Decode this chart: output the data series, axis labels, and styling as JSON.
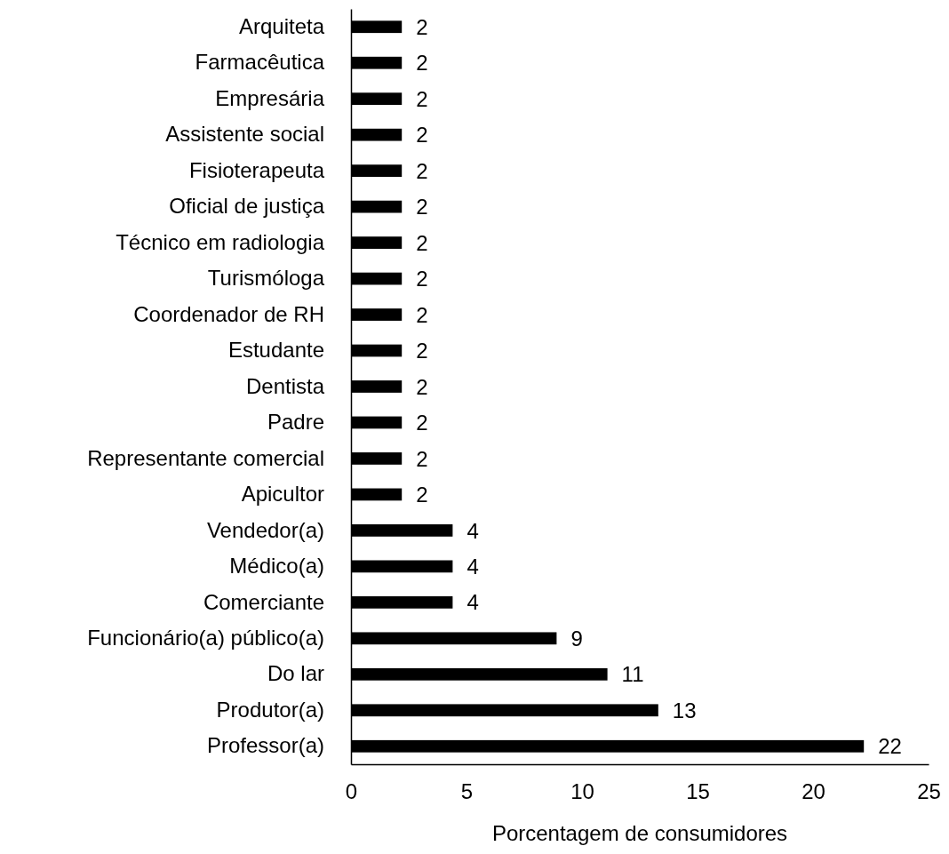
{
  "chart_data": {
    "type": "bar",
    "orientation": "horizontal",
    "xlabel": "Porcentagem de consumidores",
    "categories": [
      "Arquiteta",
      "Farmacêutica",
      "Empresária",
      "Assistente social",
      "Fisioterapeuta",
      "Oficial de justiça",
      "Técnico em radiologia",
      "Turismóloga",
      "Coordenador de RH",
      "Estudante",
      "Dentista",
      "Padre",
      "Representante comercial",
      "Apicultor",
      "Vendedor(a)",
      "Médico(a)",
      "Comerciante",
      "Funcionário(a) público(a)",
      "Do lar",
      "Produtor(a)",
      "Professor(a)"
    ],
    "values": [
      2.2,
      2.2,
      2.2,
      2.2,
      2.2,
      2.2,
      2.2,
      2.2,
      2.2,
      2.2,
      2.2,
      2.2,
      2.2,
      2.2,
      4.4,
      4.4,
      4.4,
      8.9,
      11.1,
      13.3,
      22.2
    ],
    "value_labels": [
      "2",
      "2",
      "2",
      "2",
      "2",
      "2",
      "2",
      "2",
      "2",
      "2",
      "2",
      "2",
      "2",
      "2",
      "4",
      "4",
      "4",
      "9",
      "11",
      "13",
      "22"
    ],
    "color": "#000000",
    "xlim": [
      0,
      25
    ],
    "xticks": [
      0,
      5,
      10,
      15,
      20,
      25
    ]
  }
}
